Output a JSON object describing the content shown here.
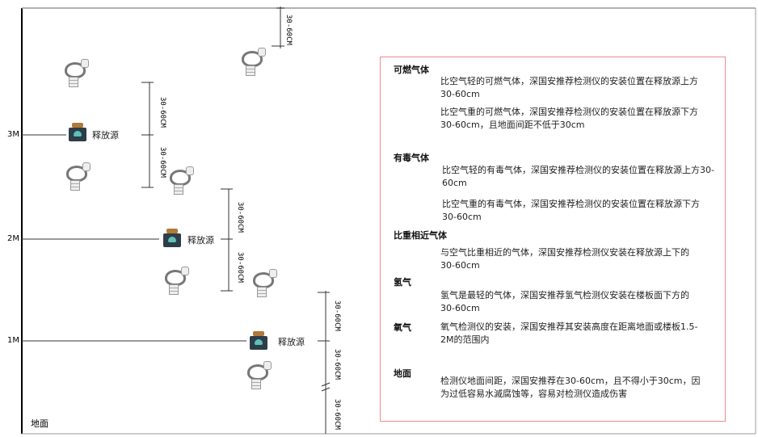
{
  "levels": [
    "3M",
    "2M",
    "1M"
  ],
  "ground_label": "地面",
  "source_label": "释放源",
  "dimension_label": "30-60CM",
  "colors": {
    "box_border": "#f08a8a",
    "source_cap": "#b07a3a",
    "source_body": "#2e3d4a",
    "source_face": "#5cc2b5"
  },
  "icons": [
    "gas-detector-icon",
    "release-source-icon"
  ],
  "legend": {
    "sections": [
      {
        "title": "可燃气体",
        "paras": [
          "比空气轻的可燃气体，深国安推荐检测仪的安装位置在释放源上方30-60cm",
          "比空气重的可燃气体，深国安推荐检测仪的安装位置在释放源下方30-60cm，且地面间距不低于30cm"
        ]
      },
      {
        "title": "有毒气体",
        "paras": [
          "比空气轻的有毒气体，深国安推荐检测仪的安装位置在释放源上方30-60cm",
          "比空气重的有毒气体，深国安推荐检测仪的安装位置在释放源下方30-60cm"
        ]
      },
      {
        "title": "比重相近气体",
        "paras": [
          "与空气比重相近的气体，深国安推荐检测仪安装在释放源上下的30-60cm"
        ]
      },
      {
        "title": "氢气",
        "paras": [
          "氢气是最轻的气体，深国安推荐氢气检测仪安装在楼板面下方的30-60cm"
        ]
      },
      {
        "title": "氧气",
        "paras": [
          "氧气检测仪的安装，深国安推荐其安装高度在距离地面或楼板1.5-2M的范围内"
        ]
      },
      {
        "title": "地面",
        "paras": [
          "检测仪地面间距，深国安推荐在30-60cm，且不得小于30cm，因为过低容易水滅腐蚀等，容易对检测仪造成伤害"
        ]
      }
    ]
  }
}
